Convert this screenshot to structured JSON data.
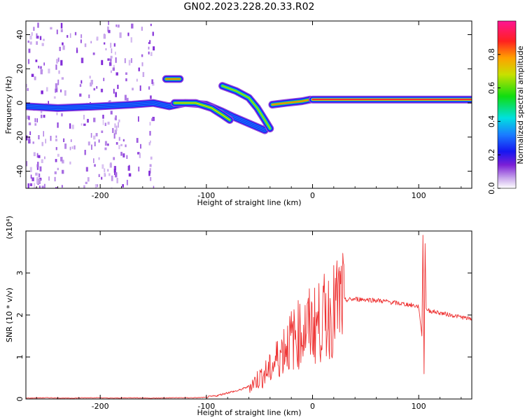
{
  "title": "GN02.2023.228.20.33.R02",
  "chart_data": [
    {
      "type": "heatmap",
      "xlabel": "Height of straight line (km)",
      "ylabel": "Frequency (Hz)",
      "xlim": [
        -270,
        150
      ],
      "ylim": [
        -50,
        48
      ],
      "xticks": [
        -200,
        -100,
        0,
        100
      ],
      "xtick_labels": [
        "-200",
        "-100",
        "0",
        "100"
      ],
      "yticks": [
        -40,
        -20,
        0,
        20,
        40
      ],
      "ytick_labels": [
        "-40",
        "-20",
        "0",
        "20",
        "40"
      ],
      "colorbar": {
        "label": "Normalized spectral amplitude",
        "range": [
          0,
          1
        ],
        "ticks": [
          0.0,
          0.2,
          0.4,
          0.6,
          0.8
        ],
        "tick_labels": [
          "0.0",
          "0.2",
          "0.4",
          "0.6",
          "0.8"
        ]
      },
      "tracks": [
        {
          "points": [
            [
              -270,
              -2
            ],
            [
              -240,
              -3
            ],
            [
              -200,
              -2
            ],
            [
              -170,
              -1
            ],
            [
              -150,
              0
            ],
            [
              -135,
              -2
            ],
            [
              -120,
              0
            ],
            [
              -100,
              -1
            ],
            [
              -85,
              -5
            ],
            [
              -75,
              -8
            ],
            [
              -60,
              -12
            ],
            [
              -45,
              -16
            ]
          ],
          "amplitude": 0.3
        },
        {
          "points": [
            [
              -130,
              0
            ],
            [
              -110,
              0
            ],
            [
              -95,
              -3
            ],
            [
              -85,
              -7
            ],
            [
              -78,
              -10
            ]
          ],
          "amplitude": 0.7
        },
        {
          "points": [
            [
              -138,
              14
            ],
            [
              -125,
              14
            ]
          ],
          "amplitude": 0.8
        },
        {
          "points": [
            [
              -85,
              10
            ],
            [
              -72,
              7
            ],
            [
              -60,
              3
            ],
            [
              -52,
              -3
            ],
            [
              -45,
              -10
            ],
            [
              -40,
              -15
            ]
          ],
          "amplitude": 0.65
        },
        {
          "points": [
            [
              -38,
              -1
            ],
            [
              -25,
              0
            ],
            [
              -10,
              1
            ],
            [
              -2,
              2
            ]
          ],
          "amplitude": 0.8
        },
        {
          "points": [
            [
              0,
              2
            ],
            [
              150,
              2
            ]
          ],
          "amplitude": 0.9
        }
      ]
    },
    {
      "type": "line",
      "xlabel": "Height of straight line (km)",
      "ylabel": "SNR (10 * v/v)",
      "y_multiplier_label": "(x10⁴)",
      "xlim": [
        -270,
        150
      ],
      "ylim": [
        0,
        4
      ],
      "xticks": [
        -200,
        -100,
        0,
        100
      ],
      "xtick_labels": [
        "-200",
        "-100",
        "0",
        "100"
      ],
      "yticks": [
        0,
        1,
        2,
        3
      ],
      "ytick_labels": [
        "0",
        "1",
        "2",
        "3"
      ],
      "color": "#ee3333",
      "series": [
        {
          "x": [
            -270,
            -250,
            -230,
            -210,
            -200,
            -190,
            -170,
            -150,
            -130,
            -110,
            -100,
            -90,
            -80,
            -70,
            -60,
            -50,
            -40,
            -35,
            -30,
            -25,
            -20,
            -15,
            -10,
            -5,
            0,
            5,
            10,
            15,
            20,
            25,
            30,
            40,
            50,
            60,
            70,
            80,
            90,
            100,
            103,
            104,
            105,
            106,
            107,
            110,
            120,
            130,
            140,
            150
          ],
          "values": [
            0.02,
            0.03,
            0.02,
            0.03,
            0.03,
            0.02,
            0.03,
            0.02,
            0.03,
            0.03,
            0.04,
            0.08,
            0.15,
            0.2,
            0.3,
            0.5,
            0.7,
            0.9,
            1.1,
            1.3,
            1.4,
            1.5,
            1.6,
            1.7,
            1.75,
            1.8,
            1.9,
            2.0,
            2.1,
            2.3,
            2.35,
            2.38,
            2.37,
            2.35,
            2.32,
            2.28,
            2.25,
            2.2,
            1.5,
            3.9,
            0.6,
            3.7,
            2.15,
            2.1,
            2.05,
            2.0,
            1.95,
            1.9
          ]
        }
      ]
    }
  ]
}
